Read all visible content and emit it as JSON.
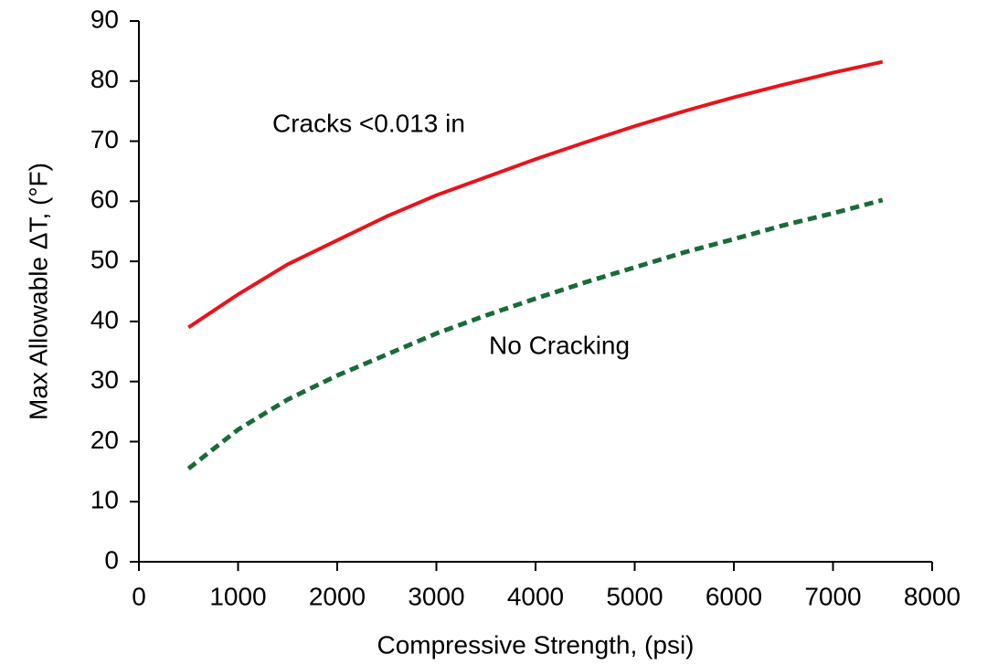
{
  "chart_data": {
    "type": "line",
    "xlabel": "Compressive Strength, (psi)",
    "ylabel": "Max Allowable ΔT, (°F)",
    "x": [
      500,
      1000,
      1500,
      2000,
      2500,
      3000,
      3500,
      4000,
      4500,
      5000,
      5500,
      6000,
      6500,
      7000,
      7500
    ],
    "series": [
      {
        "name": "Cracks <0.013 in",
        "color": "#e8141b",
        "dashed": false,
        "values": [
          39,
          44.5,
          49.5,
          53.5,
          57.5,
          61,
          64,
          67,
          69.8,
          72.5,
          75,
          77.3,
          79.4,
          81.4,
          83.2
        ]
      },
      {
        "name": "No Cracking",
        "color": "#1a6b3a",
        "dashed": true,
        "values": [
          15.5,
          22,
          27,
          31,
          34.5,
          38,
          41,
          43.8,
          46.5,
          49,
          51.5,
          53.7,
          56,
          58,
          60.2
        ]
      }
    ],
    "xlim": [
      0,
      8000
    ],
    "xticks": [
      0,
      1000,
      2000,
      3000,
      4000,
      5000,
      6000,
      7000,
      8000
    ],
    "ylim": [
      0,
      90
    ],
    "yticks": [
      0,
      10,
      20,
      30,
      40,
      50,
      60,
      70,
      80,
      90
    ],
    "grid": false
  }
}
